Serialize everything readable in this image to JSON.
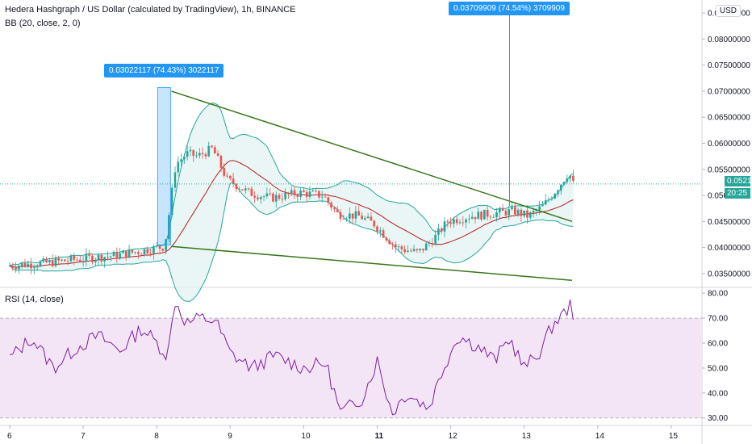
{
  "header": {
    "title": "Hedera Hashgraph / US Dollar (calculated by TradingView), 1h, BINANCE",
    "bb_label": "BB (20, close, 2, 0)",
    "rsi_label": "RSI (14, close)",
    "currency": "USD"
  },
  "callouts": [
    {
      "text": "0.03022117 (74.43%) 3022117"
    },
    {
      "text": "0.03709909 (74.54%) 3709909"
    }
  ],
  "price_badges": {
    "last_price": "0.05219127",
    "countdown": "20:25",
    "price_color": "#26a69a"
  },
  "colors": {
    "up": "#26a69a",
    "down": "#ef5350",
    "bb_band": "#26a69a",
    "bb_fill": "#e0f2f1",
    "bb_basis": "#b71c1c",
    "trendline": "#38761d",
    "rsi_line": "#7b1fa2",
    "rsi_fill": "#f3e5f5",
    "measure": "#2196f3"
  },
  "chart_data": [
    {
      "type": "candlestick",
      "title": "Hedera Hashgraph / US Dollar (calculated by TradingView), 1h, BINANCE",
      "x_tick_labels": [
        "6",
        "7",
        "8",
        "9",
        "10",
        "11",
        "12",
        "13",
        "14",
        "15"
      ],
      "x_tick_day": [
        6,
        7,
        8,
        9,
        10,
        11,
        12,
        13,
        14,
        15
      ],
      "y_tick_labels": [
        "0.03500000",
        "0.04000000",
        "0.04500000",
        "0.05000000",
        "0.05500000",
        "0.06000000",
        "0.06500000",
        "0.07000000",
        "0.07500000",
        "0.08000000",
        "0.08500000"
      ],
      "ylim": [
        0.0325,
        0.0875
      ],
      "price_path": [
        {
          "day": 6.0,
          "price": 0.0365
        },
        {
          "day": 6.5,
          "price": 0.037
        },
        {
          "day": 7.0,
          "price": 0.0378
        },
        {
          "day": 7.5,
          "price": 0.0385
        },
        {
          "day": 8.0,
          "price": 0.0398
        },
        {
          "day": 8.15,
          "price": 0.0402
        },
        {
          "day": 8.3,
          "price": 0.056
        },
        {
          "day": 8.45,
          "price": 0.058
        },
        {
          "day": 8.6,
          "price": 0.0575
        },
        {
          "day": 8.8,
          "price": 0.059
        },
        {
          "day": 9.0,
          "price": 0.053
        },
        {
          "day": 9.3,
          "price": 0.0505
        },
        {
          "day": 9.6,
          "price": 0.0495
        },
        {
          "day": 10.0,
          "price": 0.0505
        },
        {
          "day": 10.3,
          "price": 0.05
        },
        {
          "day": 10.5,
          "price": 0.0465
        },
        {
          "day": 10.8,
          "price": 0.046
        },
        {
          "day": 11.0,
          "price": 0.0445
        },
        {
          "day": 11.3,
          "price": 0.04
        },
        {
          "day": 11.6,
          "price": 0.039
        },
        {
          "day": 11.8,
          "price": 0.0415
        },
        {
          "day": 12.0,
          "price": 0.045
        },
        {
          "day": 12.3,
          "price": 0.046
        },
        {
          "day": 12.6,
          "price": 0.0465
        },
        {
          "day": 12.9,
          "price": 0.047
        },
        {
          "day": 13.1,
          "price": 0.046
        },
        {
          "day": 13.3,
          "price": 0.048
        },
        {
          "day": 13.5,
          "price": 0.0515
        },
        {
          "day": 13.65,
          "price": 0.0545
        },
        {
          "day": 13.7,
          "price": 0.0522
        }
      ],
      "trendlines": [
        {
          "from": {
            "day": 8.2,
            "price": 0.07
          },
          "to": {
            "day": 13.65,
            "price": 0.045
          }
        },
        {
          "from": {
            "day": 8.2,
            "price": 0.0402
          },
          "to": {
            "day": 13.65,
            "price": 0.0337
          }
        }
      ],
      "measures": [
        {
          "day": 8.1,
          "from": 0.0405,
          "to": 0.0707
        },
        {
          "day": 12.8,
          "from": 0.048,
          "to": 0.0853
        }
      ],
      "last_price": 0.05219127
    },
    {
      "type": "line",
      "title": "RSI (14, close)",
      "y_tick_labels": [
        "30.00",
        "40.00",
        "50.00",
        "60.00",
        "70.00",
        "80.00"
      ],
      "ylim": [
        27,
        82
      ],
      "band": [
        30,
        70
      ],
      "rsi_path": [
        {
          "day": 6.0,
          "rsi": 54
        },
        {
          "day": 6.3,
          "rsi": 62
        },
        {
          "day": 6.6,
          "rsi": 50
        },
        {
          "day": 6.9,
          "rsi": 58
        },
        {
          "day": 7.2,
          "rsi": 63
        },
        {
          "day": 7.5,
          "rsi": 57
        },
        {
          "day": 7.8,
          "rsi": 66
        },
        {
          "day": 8.0,
          "rsi": 60
        },
        {
          "day": 8.15,
          "rsi": 55
        },
        {
          "day": 8.25,
          "rsi": 77
        },
        {
          "day": 8.4,
          "rsi": 68
        },
        {
          "day": 8.6,
          "rsi": 70
        },
        {
          "day": 8.8,
          "rsi": 69
        },
        {
          "day": 9.0,
          "rsi": 56
        },
        {
          "day": 9.3,
          "rsi": 50
        },
        {
          "day": 9.6,
          "rsi": 55
        },
        {
          "day": 10.0,
          "rsi": 50
        },
        {
          "day": 10.3,
          "rsi": 52
        },
        {
          "day": 10.5,
          "rsi": 32
        },
        {
          "day": 10.8,
          "rsi": 38
        },
        {
          "day": 11.0,
          "rsi": 53
        },
        {
          "day": 11.2,
          "rsi": 32
        },
        {
          "day": 11.4,
          "rsi": 40
        },
        {
          "day": 11.7,
          "rsi": 34
        },
        {
          "day": 11.9,
          "rsi": 50
        },
        {
          "day": 12.1,
          "rsi": 63
        },
        {
          "day": 12.4,
          "rsi": 58
        },
        {
          "day": 12.6,
          "rsi": 53
        },
        {
          "day": 12.8,
          "rsi": 62
        },
        {
          "day": 13.0,
          "rsi": 50
        },
        {
          "day": 13.2,
          "rsi": 56
        },
        {
          "day": 13.4,
          "rsi": 68
        },
        {
          "day": 13.55,
          "rsi": 72
        },
        {
          "day": 13.65,
          "rsi": 76
        },
        {
          "day": 13.7,
          "rsi": 64
        }
      ]
    }
  ]
}
